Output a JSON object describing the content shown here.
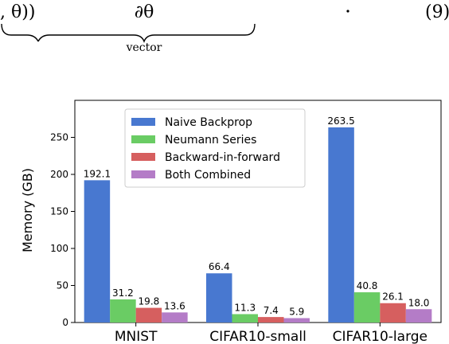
{
  "equation": {
    "left_fragment": ", θ))",
    "partial_theta": "∂θ",
    "underbrace_label": "vector",
    "equation_number": "(9)"
  },
  "chart_data": {
    "type": "bar",
    "ylabel": "Memory (GB)",
    "xlabel": "",
    "ylim": [
      0,
      300
    ],
    "yticks": [
      0,
      50,
      100,
      150,
      200,
      250
    ],
    "categories": [
      "MNIST",
      "CIFAR10-small",
      "CIFAR10-large"
    ],
    "series": [
      {
        "name": "Naive Backprop",
        "color": "#4878d0",
        "values": [
          192.1,
          66.4,
          263.5
        ]
      },
      {
        "name": "Neumann Series",
        "color": "#6acc64",
        "values": [
          31.2,
          11.3,
          40.8
        ]
      },
      {
        "name": "Backward-in-forward",
        "color": "#d65f5f",
        "values": [
          19.8,
          7.4,
          26.1
        ]
      },
      {
        "name": "Both Combined",
        "color": "#b47cc7",
        "values": [
          13.6,
          5.9,
          18.0
        ]
      }
    ],
    "legend_position": "top-center",
    "grid": false
  }
}
